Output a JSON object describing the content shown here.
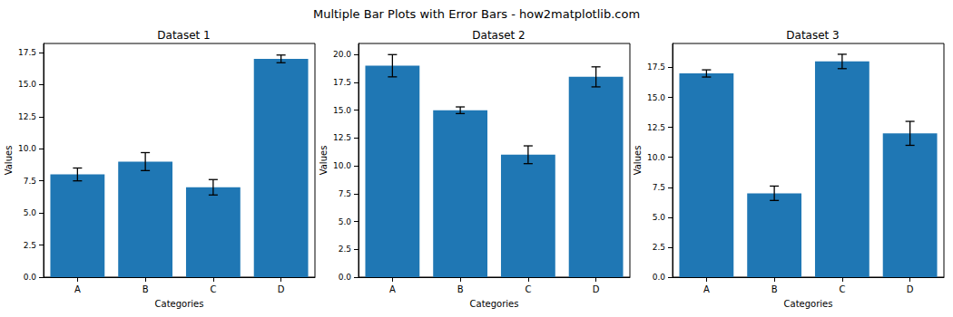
{
  "title": "Multiple Bar Plots with Error Bars - how2matplotlib.com",
  "chart_data": [
    {
      "type": "bar",
      "title": "Dataset 1",
      "x_label": "Categories",
      "y_label": "Values",
      "categories": [
        "A",
        "B",
        "C",
        "D"
      ],
      "values": [
        8,
        9,
        7,
        17
      ],
      "errors": [
        0.5,
        0.7,
        0.6,
        0.3
      ],
      "color": "#1f77b4",
      "ylim": [
        0,
        18.2
      ],
      "yticks": [
        {
          "value": 0,
          "label": "0.0"
        },
        2.5,
        {
          "value": 5,
          "label": "5.0"
        },
        7.5,
        {
          "value": 10,
          "label": "10.0"
        },
        12.5,
        {
          "value": 15,
          "label": "15.0"
        },
        17.5
      ],
      "grid": false
    },
    {
      "type": "bar",
      "title": "Dataset 2",
      "x_label": "Categories",
      "y_label": "Values",
      "categories": [
        "A",
        "B",
        "C",
        "D"
      ],
      "values": [
        19,
        15,
        11,
        18
      ],
      "errors": [
        1.0,
        0.3,
        0.8,
        0.9
      ],
      "color": "#1f77b4",
      "ylim": [
        0,
        21
      ],
      "yticks": [
        {
          "value": 0,
          "label": "0.0"
        },
        2.5,
        {
          "value": 5,
          "label": "5.0"
        },
        7.5,
        {
          "value": 10,
          "label": "10.0"
        },
        12.5,
        {
          "value": 15,
          "label": "15.0"
        },
        17.5,
        {
          "value": 20,
          "label": "20.0"
        }
      ],
      "grid": false
    },
    {
      "type": "bar",
      "title": "Dataset 3",
      "x_label": "Categories",
      "y_label": "Values",
      "categories": [
        "A",
        "B",
        "C",
        "D"
      ],
      "values": [
        17,
        7,
        18,
        12
      ],
      "errors": [
        0.3,
        0.6,
        0.6,
        1.0
      ],
      "color": "#1f77b4",
      "ylim": [
        0,
        19.5
      ],
      "yticks": [
        {
          "value": 0,
          "label": "0.0"
        },
        2.5,
        {
          "value": 5,
          "label": "5.0"
        },
        7.5,
        {
          "value": 10,
          "label": "10.0"
        },
        12.5,
        {
          "value": 15,
          "label": "15.0"
        },
        17.5
      ],
      "grid": false
    }
  ]
}
